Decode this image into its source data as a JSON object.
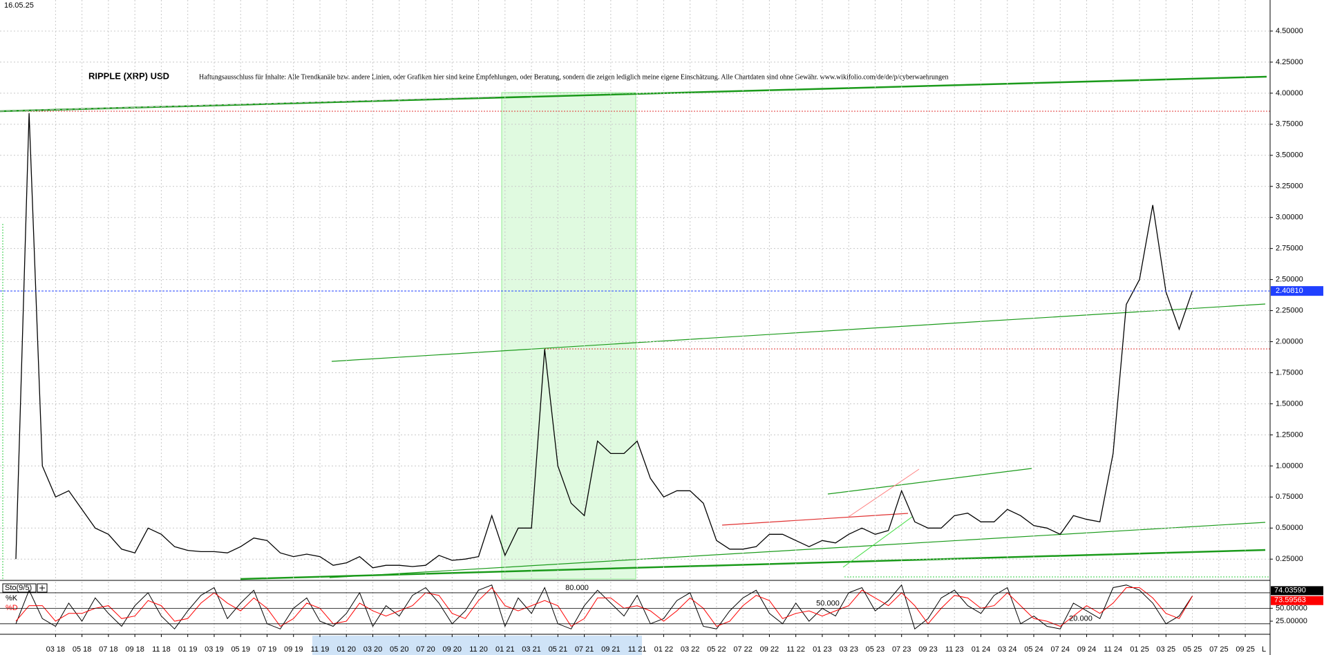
{
  "chart_data": [
    {
      "type": "line",
      "date": "16.05.25",
      "title": "RIPPLE (XRP) USD",
      "subtitle": "Haftungsausschluss für Inhalte: Alle Trendkanäle bzw. andere Linien, oder Grafiken hier sind keine Empfehlungen, oder Beratung, sondern die zeigen lediglich meine eigene Einschätzung. Alle Chartdaten sind ohne Gewähr.  www.wikifolio.com/de/de/p/cyberwaehrungen",
      "categories": [
        null,
        null,
        null,
        "03 18",
        null,
        "05 18",
        null,
        "07 18",
        null,
        "09 18",
        null,
        "11 18",
        null,
        "01 19",
        null,
        "03 19",
        null,
        "05 19",
        null,
        "07 19",
        null,
        "09 19",
        null,
        "11 19",
        null,
        "01 20",
        null,
        "03 20",
        null,
        "05 20",
        null,
        "07 20",
        null,
        "09 20",
        null,
        "11 20",
        null,
        "01 21",
        null,
        "03 21",
        null,
        "05 21",
        null,
        "07 21",
        null,
        "09 21",
        null,
        "11 21",
        null,
        "01 22",
        null,
        "03 22",
        null,
        "05 22",
        null,
        "07 22",
        null,
        "09 22",
        null,
        "11 22",
        null,
        "01 23",
        null,
        "03 23",
        null,
        "05 23",
        null,
        "07 23",
        null,
        "09 23",
        null,
        "11 23",
        null,
        "01 24",
        null,
        "03 24",
        null,
        "05 24",
        null,
        "07 24",
        null,
        "09 24",
        null,
        "11 24",
        null,
        "01 25",
        null,
        "03 25",
        null,
        "05 25",
        null,
        "07 25",
        null,
        "09 25"
      ],
      "values": [
        0.25,
        3.84,
        1.0,
        0.75,
        0.8,
        0.65,
        0.5,
        0.45,
        0.33,
        0.3,
        0.5,
        0.45,
        0.35,
        0.32,
        0.31,
        0.31,
        0.3,
        0.35,
        0.42,
        0.4,
        0.3,
        0.27,
        0.29,
        0.27,
        0.2,
        0.22,
        0.27,
        0.18,
        0.2,
        0.2,
        0.19,
        0.2,
        0.28,
        0.24,
        0.25,
        0.27,
        0.6,
        0.28,
        0.5,
        0.5,
        1.94,
        1.0,
        0.7,
        0.6,
        1.2,
        1.1,
        1.1,
        1.2,
        0.9,
        0.75,
        0.8,
        0.8,
        0.7,
        0.4,
        0.33,
        0.33,
        0.35,
        0.45,
        0.45,
        0.4,
        0.35,
        0.4,
        0.38,
        0.45,
        0.5,
        0.45,
        0.48,
        0.8,
        0.55,
        0.5,
        0.5,
        0.6,
        0.62,
        0.55,
        0.55,
        0.65,
        0.6,
        0.52,
        0.5,
        0.45,
        0.6,
        0.57,
        0.55,
        1.1,
        2.3,
        2.5,
        3.1,
        2.4,
        2.1,
        2.41,
        null,
        null,
        null,
        null
      ],
      "color": "#000000",
      "grid": true,
      "ylim": [
        0.09,
        4.75
      ],
      "yticks": [
        {
          "value": 0.25,
          "label": "0.25000"
        },
        {
          "value": 0.5,
          "label": "0.50000"
        },
        {
          "value": 0.75,
          "label": "0.75000"
        },
        {
          "value": 1.0,
          "label": "1.00000"
        },
        {
          "value": 1.25,
          "label": "1.25000"
        },
        {
          "value": 1.5,
          "label": "1.50000"
        },
        {
          "value": 1.75,
          "label": "1.75000"
        },
        {
          "value": 2.0,
          "label": "2.00000"
        },
        {
          "value": 2.25,
          "label": "2.25000"
        },
        {
          "value": 2.5,
          "label": "2.50000"
        },
        {
          "value": 2.75,
          "label": "2.75000"
        },
        {
          "value": 3.0,
          "label": "3.00000"
        },
        {
          "value": 3.25,
          "label": "3.25000"
        },
        {
          "value": 3.5,
          "label": "3.50000"
        },
        {
          "value": 3.75,
          "label": "3.75000"
        },
        {
          "value": 4.0,
          "label": "4.00000"
        },
        {
          "value": 4.25,
          "label": "4.25000"
        },
        {
          "value": 4.5,
          "label": "4.50000"
        }
      ],
      "last_price": {
        "value": 2.4081,
        "label": "2.40810"
      },
      "axis_end_label": "L"
    },
    {
      "type": "line",
      "title": "Sto(9/5)",
      "series": [
        {
          "name": "%K",
          "color": "#000000",
          "values": [
            20,
            85,
            30,
            15,
            60,
            25,
            70,
            40,
            15,
            55,
            80,
            35,
            10,
            45,
            75,
            90,
            30,
            60,
            85,
            20,
            10,
            50,
            70,
            25,
            15,
            40,
            80,
            15,
            55,
            35,
            75,
            90,
            60,
            20,
            45,
            85,
            95,
            15,
            70,
            40,
            90,
            20,
            10,
            55,
            85,
            60,
            35,
            75,
            20,
            30,
            65,
            80,
            15,
            10,
            45,
            70,
            85,
            40,
            20,
            60,
            25,
            50,
            35,
            80,
            90,
            45,
            65,
            95,
            10,
            30,
            70,
            85,
            55,
            40,
            75,
            90,
            20,
            35,
            15,
            10,
            60,
            45,
            30,
            90,
            95,
            85,
            60,
            20,
            35,
            74.0359,
            null,
            null,
            null,
            null
          ],
          "value_labels": [
            null,
            null,
            null,
            null,
            null,
            null,
            null,
            null,
            null,
            null,
            null,
            null,
            null,
            null,
            null,
            null,
            null,
            null,
            null,
            null,
            null,
            null,
            null,
            null,
            null,
            null,
            null,
            null,
            null,
            null,
            null,
            null,
            null,
            null,
            null,
            null,
            null,
            null,
            null,
            null,
            null,
            null,
            null,
            null,
            null,
            null,
            null,
            null,
            null,
            null,
            null,
            null,
            null,
            null,
            null,
            null,
            null,
            null,
            null,
            null,
            null,
            null,
            null,
            null,
            null,
            null,
            null,
            null,
            null,
            null,
            null,
            null,
            null,
            null,
            null,
            null,
            null,
            null,
            null,
            null,
            null,
            null,
            null,
            null,
            null,
            null,
            null,
            null,
            null,
            "74.03590",
            null,
            null,
            null,
            null
          ]
        },
        {
          "name": "%D",
          "color": "#ff0000",
          "values": [
            25,
            55,
            55,
            25,
            40,
            40,
            50,
            55,
            30,
            35,
            65,
            55,
            25,
            30,
            60,
            80,
            60,
            45,
            70,
            50,
            15,
            30,
            60,
            50,
            20,
            25,
            60,
            45,
            35,
            45,
            55,
            80,
            75,
            40,
            30,
            65,
            90,
            55,
            45,
            55,
            65,
            55,
            15,
            30,
            70,
            70,
            50,
            55,
            45,
            25,
            45,
            70,
            50,
            15,
            25,
            55,
            75,
            65,
            30,
            40,
            45,
            35,
            45,
            55,
            85,
            70,
            55,
            80,
            55,
            20,
            50,
            75,
            70,
            50,
            55,
            80,
            55,
            30,
            25,
            15,
            35,
            55,
            40,
            60,
            90,
            90,
            70,
            40,
            30,
            73.59563,
            null,
            null,
            null,
            null
          ],
          "value_labels": [
            null,
            null,
            null,
            null,
            null,
            null,
            null,
            null,
            null,
            null,
            null,
            null,
            null,
            null,
            null,
            null,
            null,
            null,
            null,
            null,
            null,
            null,
            null,
            null,
            null,
            null,
            null,
            null,
            null,
            null,
            null,
            null,
            null,
            null,
            null,
            null,
            null,
            null,
            null,
            null,
            null,
            null,
            null,
            null,
            null,
            null,
            null,
            null,
            null,
            null,
            null,
            null,
            null,
            null,
            null,
            null,
            null,
            null,
            null,
            null,
            null,
            null,
            null,
            null,
            null,
            null,
            null,
            null,
            null,
            null,
            null,
            null,
            null,
            null,
            null,
            null,
            null,
            null,
            null,
            null,
            null,
            null,
            null,
            null,
            null,
            null,
            null,
            null,
            null,
            "73.59563",
            null,
            null,
            null,
            null
          ]
        }
      ],
      "ylim": [
        5,
        100
      ],
      "yticks": [
        {
          "value": 25,
          "label": "25.00000"
        },
        {
          "value": 50,
          "label": "50.00000"
        }
      ],
      "levels": [
        {
          "value": 80,
          "label": "80.000"
        },
        {
          "value": 50,
          "label": "50.000"
        },
        {
          "value": 20,
          "label": "20.000"
        }
      ]
    }
  ]
}
